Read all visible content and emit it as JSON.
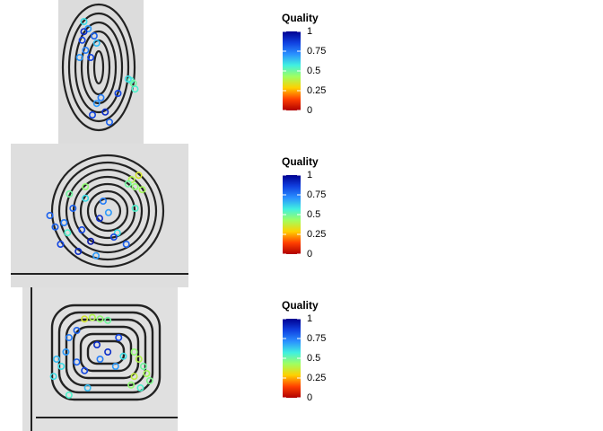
{
  "chart_data": [
    {
      "type": "scatter",
      "colorbar_title": "Quality",
      "clim": [
        0,
        1
      ],
      "cticks": [
        0,
        0.25,
        0.5,
        0.75,
        1
      ],
      "colorscale": [
        "#b00000",
        "#ff4000",
        "#ffd000",
        "#a0ff60",
        "#40f0e0",
        "#2a90ff",
        "#1040e0",
        "#000090"
      ],
      "xlim": [
        0,
        1
      ],
      "ylim": [
        1,
        0
      ],
      "x": [
        0.3,
        0.35,
        0.28,
        0.42,
        0.32,
        0.25,
        0.38,
        0.45,
        0.3,
        0.85,
        0.88,
        0.82,
        0.9,
        0.4,
        0.55,
        0.6,
        0.5,
        0.7,
        0.45
      ],
      "y": [
        0.15,
        0.2,
        0.28,
        0.25,
        0.35,
        0.4,
        0.4,
        0.3,
        0.22,
        0.56,
        0.58,
        0.55,
        0.62,
        0.8,
        0.78,
        0.85,
        0.68,
        0.65,
        0.72
      ],
      "values": [
        0.6,
        0.7,
        0.85,
        0.8,
        0.75,
        0.7,
        0.85,
        0.65,
        0.9,
        0.55,
        0.5,
        0.6,
        0.55,
        0.85,
        0.9,
        0.8,
        0.75,
        0.85,
        0.7
      ]
    },
    {
      "type": "scatter",
      "colorbar_title": "Quality",
      "clim": [
        0,
        1
      ],
      "cticks": [
        0,
        0.25,
        0.5,
        0.75,
        1
      ],
      "colorscale": [
        "#b00000",
        "#ff4000",
        "#ffd000",
        "#a0ff60",
        "#40f0e0",
        "#2a90ff",
        "#1040e0",
        "#000090"
      ],
      "xlim": [
        0,
        1
      ],
      "ylim": [
        1,
        0
      ],
      "x": [
        0.68,
        0.7,
        0.72,
        0.66,
        0.74,
        0.33,
        0.42,
        0.35,
        0.3,
        0.4,
        0.5,
        0.55,
        0.25,
        0.28,
        0.45,
        0.6,
        0.65,
        0.38,
        0.48,
        0.58,
        0.32,
        0.52,
        0.7,
        0.22,
        0.42
      ],
      "y": [
        0.25,
        0.3,
        0.22,
        0.28,
        0.32,
        0.35,
        0.38,
        0.45,
        0.55,
        0.6,
        0.52,
        0.48,
        0.58,
        0.7,
        0.68,
        0.62,
        0.7,
        0.75,
        0.78,
        0.65,
        0.62,
        0.4,
        0.45,
        0.5,
        0.3
      ],
      "values": [
        0.4,
        0.45,
        0.35,
        0.5,
        0.42,
        0.5,
        0.6,
        0.8,
        0.75,
        0.85,
        0.9,
        0.7,
        0.8,
        0.85,
        0.95,
        0.6,
        0.8,
        0.9,
        0.7,
        0.85,
        0.55,
        0.75,
        0.55,
        0.8,
        0.45
      ]
    },
    {
      "type": "scatter",
      "colorbar_title": "Quality",
      "clim": [
        0,
        1
      ],
      "cticks": [
        0,
        0.25,
        0.5,
        0.75,
        1
      ],
      "colorscale": [
        "#b00000",
        "#ff4000",
        "#ffd000",
        "#a0ff60",
        "#40f0e0",
        "#2a90ff",
        "#1040e0",
        "#000090"
      ],
      "xlim": [
        0,
        1
      ],
      "ylim": [
        1,
        0
      ],
      "x": [
        0.4,
        0.45,
        0.5,
        0.55,
        0.3,
        0.28,
        0.22,
        0.25,
        0.35,
        0.4,
        0.5,
        0.55,
        0.72,
        0.75,
        0.78,
        0.8,
        0.72,
        0.7,
        0.76,
        0.82,
        0.6,
        0.65,
        0.3,
        0.42,
        0.2,
        0.62,
        0.35,
        0.48
      ],
      "y": [
        0.22,
        0.21,
        0.22,
        0.23,
        0.35,
        0.45,
        0.5,
        0.55,
        0.52,
        0.58,
        0.5,
        0.45,
        0.45,
        0.5,
        0.55,
        0.6,
        0.62,
        0.68,
        0.7,
        0.65,
        0.55,
        0.48,
        0.75,
        0.7,
        0.62,
        0.35,
        0.3,
        0.4
      ],
      "values": [
        0.35,
        0.4,
        0.45,
        0.5,
        0.75,
        0.7,
        0.65,
        0.6,
        0.8,
        0.85,
        0.75,
        0.9,
        0.45,
        0.4,
        0.5,
        0.42,
        0.38,
        0.45,
        0.55,
        0.48,
        0.7,
        0.6,
        0.55,
        0.65,
        0.6,
        0.85,
        0.8,
        0.9
      ]
    }
  ]
}
